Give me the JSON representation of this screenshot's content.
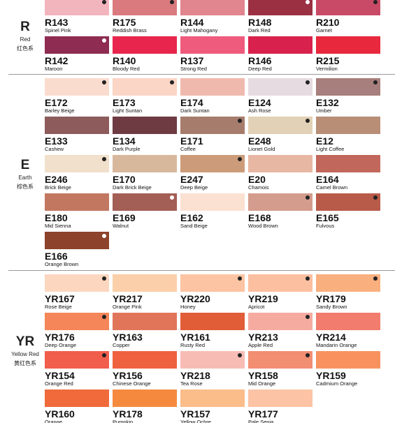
{
  "groups": [
    {
      "code": "R",
      "name": "Red",
      "cn": "红色系",
      "swatches": [
        {
          "code": "R143",
          "name": "Spinel Pink",
          "color": "#f3b5bd",
          "dot": "#222"
        },
        {
          "code": "R175",
          "name": "Reddish Brass",
          "color": "#da7a7f",
          "dot": "#222"
        },
        {
          "code": "R144",
          "name": "Light Mahogany",
          "color": "#e1858f"
        },
        {
          "code": "R148",
          "name": "Dark Red",
          "color": "#9b3043",
          "dot": "#fff"
        },
        {
          "code": "R210",
          "name": "Garnet",
          "color": "#c94a66",
          "dot": "#222"
        },
        {
          "code": "R142",
          "name": "Maroon",
          "color": "#8e2c52",
          "dot": "#fff"
        },
        {
          "code": "R140",
          "name": "Bloody Red",
          "color": "#e8254c"
        },
        {
          "code": "R137",
          "name": "Strong Red",
          "color": "#ef5b7d"
        },
        {
          "code": "R146",
          "name": "Deep Red",
          "color": "#d8224d"
        },
        {
          "code": "R215",
          "name": "Vermilion",
          "color": "#e8283c"
        }
      ]
    },
    {
      "code": "E",
      "name": "Earth",
      "cn": "棕色系",
      "swatches": [
        {
          "code": "E172",
          "name": "Barley Beige",
          "color": "#fadccf",
          "dot": "#222"
        },
        {
          "code": "E173",
          "name": "Light Suntan",
          "color": "#fbd5c6",
          "dot": "#222"
        },
        {
          "code": "E174",
          "name": "Dark Suntan",
          "color": "#f0b9ae"
        },
        {
          "code": "E124",
          "name": "Ash Rose",
          "color": "#e5dbe0",
          "dot": "#222"
        },
        {
          "code": "E132",
          "name": "Umber",
          "color": "#a77f7c",
          "dot": "#222"
        },
        {
          "code": "E133",
          "name": "Cashew",
          "color": "#8d5b5b"
        },
        {
          "code": "E134",
          "name": "Dark Purple",
          "color": "#6e3b43"
        },
        {
          "code": "E171",
          "name": "Coffee",
          "color": "#a67c6c",
          "dot": "#222"
        },
        {
          "code": "E248",
          "name": "Lionet Gold",
          "color": "#e2d1b6",
          "dot": "#222"
        },
        {
          "code": "E12",
          "name": "Light Coffee",
          "color": "#b88e76"
        },
        {
          "code": "E246",
          "name": "Brick Beige",
          "color": "#f1e0cb",
          "dot": "#222"
        },
        {
          "code": "E170",
          "name": "Dark Brick Beige",
          "color": "#d8b89c"
        },
        {
          "code": "E247",
          "name": "Deep Beige",
          "color": "#cc9c7a",
          "dot": "#222"
        },
        {
          "code": "E20",
          "name": "Chamois",
          "color": "#e7b7a3"
        },
        {
          "code": "E164",
          "name": "Camel Brown",
          "color": "#c2675c"
        },
        {
          "code": "E180",
          "name": "Mid Sienna",
          "color": "#c27860"
        },
        {
          "code": "E169",
          "name": "Walnut",
          "color": "#a35e55",
          "dot": "#fff"
        },
        {
          "code": "E162",
          "name": "Sand Beige",
          "color": "#fbe1d2"
        },
        {
          "code": "E168",
          "name": "Wood Brown",
          "color": "#d49c8c",
          "dot": "#222"
        },
        {
          "code": "E165",
          "name": "Fulvous",
          "color": "#b95b49",
          "dot": "#222"
        },
        {
          "code": "E166",
          "name": "Orange Brown",
          "color": "#8d422b",
          "dot": "#fff"
        }
      ]
    },
    {
      "code": "YR",
      "name": "Yellow Red",
      "cn": "黄红色系",
      "swatches": [
        {
          "code": "YR167",
          "name": "Rose Beige",
          "color": "#fcd6bf",
          "dot": "#222"
        },
        {
          "code": "YR217",
          "name": "Orange Pink",
          "color": "#fbcfa9"
        },
        {
          "code": "YR220",
          "name": "Honey",
          "color": "#fcc4a2",
          "dot": "#222"
        },
        {
          "code": "YR219",
          "name": "Apricot",
          "color": "#fcbfa0",
          "dot": "#222"
        },
        {
          "code": "YR179",
          "name": "Sandy Brown",
          "color": "#f9af7e",
          "dot": "#222"
        },
        {
          "code": "YR176",
          "name": "Deep Orange",
          "color": "#f48659",
          "dot": "#222"
        },
        {
          "code": "YR163",
          "name": "Copper",
          "color": "#e1755a"
        },
        {
          "code": "YR161",
          "name": "Rusty Red",
          "color": "#e05d38"
        },
        {
          "code": "YR213",
          "name": "Apple Red",
          "color": "#f6aba1",
          "dot": "#222"
        },
        {
          "code": "YR214",
          "name": "Mandarin Orange",
          "color": "#f27c6d"
        },
        {
          "code": "YR154",
          "name": "Orange Red",
          "color": "#f25e4c",
          "dot": "#222"
        },
        {
          "code": "YR156",
          "name": "Chinese Orange",
          "color": "#ef6240"
        },
        {
          "code": "YR218",
          "name": "Tea Rose",
          "color": "#f7bdb5",
          "dot": "#222"
        },
        {
          "code": "YR158",
          "name": "Mid Orange",
          "color": "#f28e72",
          "dot": "#222"
        },
        {
          "code": "YR159",
          "name": "Cadmium Orange",
          "color": "#f7925f"
        },
        {
          "code": "YR160",
          "name": "Orange",
          "color": "#f06a3b"
        },
        {
          "code": "YR178",
          "name": "Pumpkin",
          "color": "#f58a3f"
        },
        {
          "code": "YR157",
          "name": "Yellow Ochre",
          "color": "#fbbd8a"
        },
        {
          "code": "YR177",
          "name": "Pale Sepia",
          "color": "#fcc3a5"
        }
      ]
    }
  ]
}
